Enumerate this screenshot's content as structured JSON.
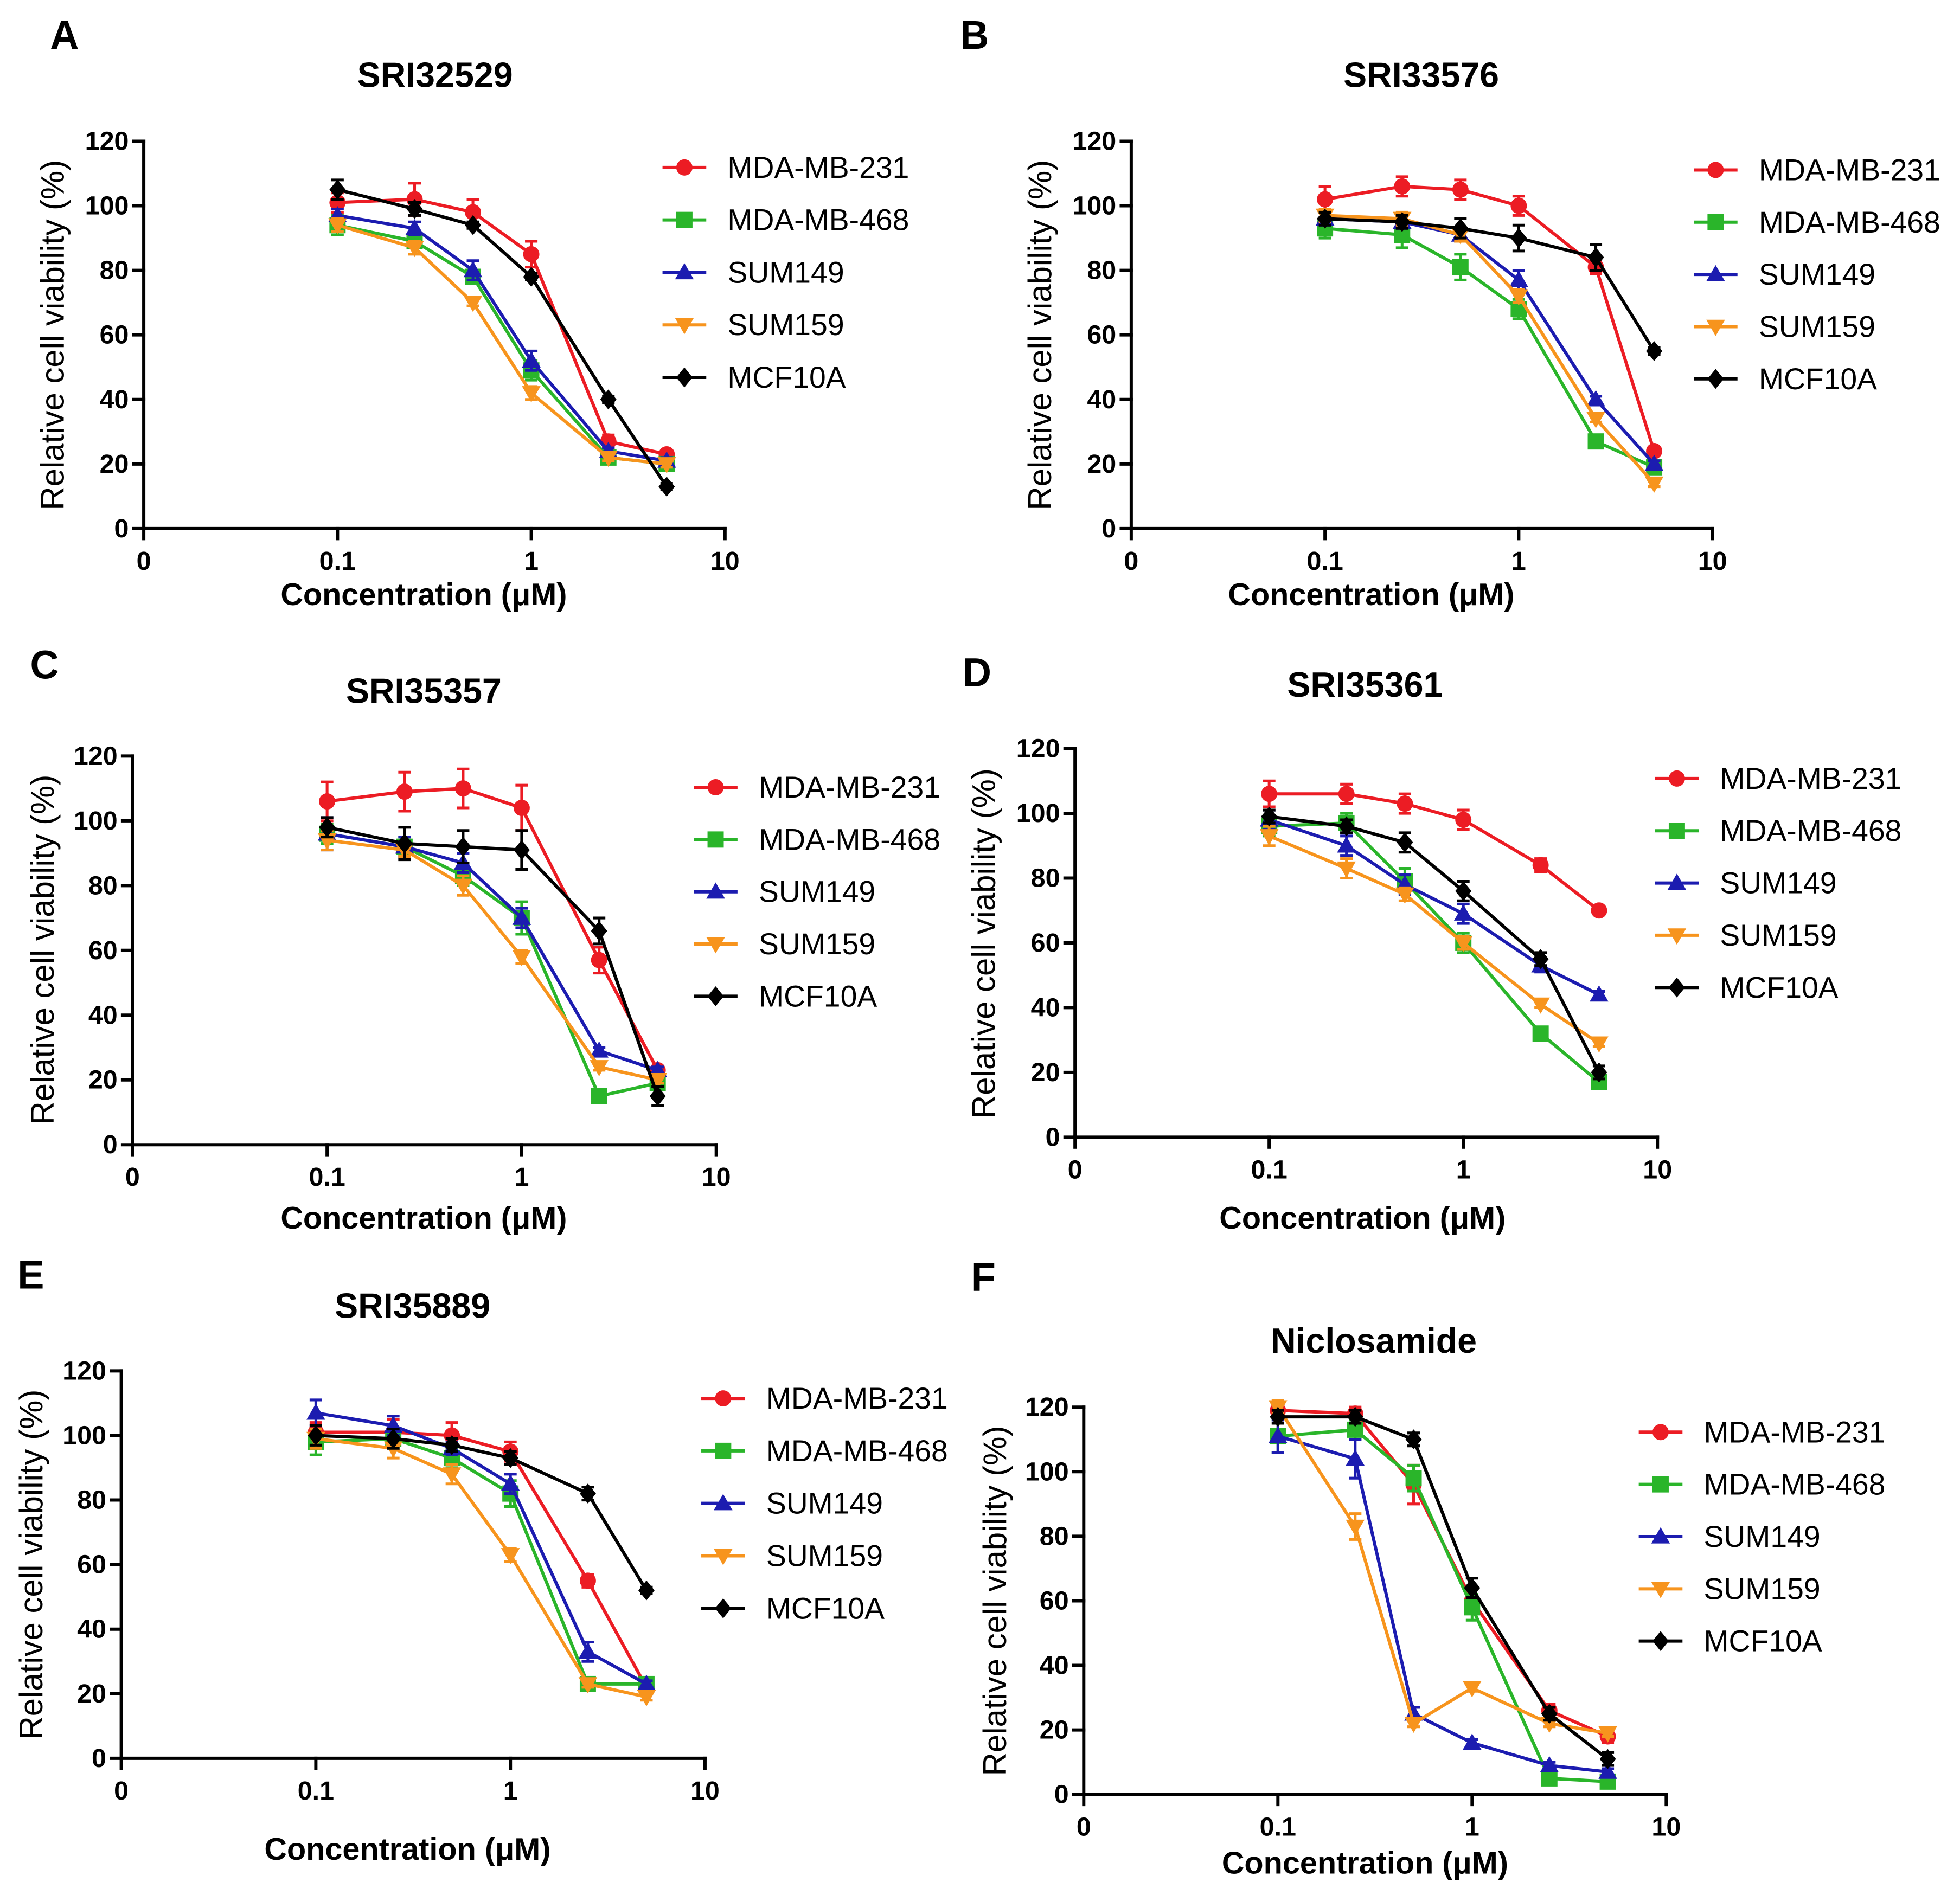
{
  "chart_data": [
    {
      "panel": "A",
      "type": "line",
      "title": "SRI32529",
      "xlabel": "Concentration (μM)",
      "ylabel": "Relative cell viability (%)",
      "xscale": "log",
      "x": [
        0.1,
        0.25,
        0.5,
        1,
        2.5,
        5
      ],
      "xticks": [
        "0",
        "0.1",
        "1",
        "10"
      ],
      "ylim": [
        0,
        120
      ],
      "yticks": [
        "0",
        "20",
        "40",
        "60",
        "80",
        "100",
        "120"
      ],
      "grid": false,
      "legend": "right",
      "series": [
        {
          "name": "MDA-MB-231",
          "color": "#ec1c24",
          "marker": "circle",
          "values": [
            101,
            102,
            98,
            85,
            27,
            23
          ],
          "errors": [
            3,
            5,
            4,
            4,
            2,
            1
          ]
        },
        {
          "name": "MDA-MB-468",
          "color": "#2ab52a",
          "marker": "square",
          "values": [
            94,
            89,
            78,
            49,
            22,
            20
          ],
          "errors": [
            3,
            2,
            2,
            3,
            1,
            1
          ]
        },
        {
          "name": "SUM149",
          "color": "#1c1cb0",
          "marker": "triangle-up",
          "values": [
            97,
            93,
            80,
            52,
            24,
            21
          ],
          "errors": [
            2,
            2,
            3,
            3,
            1,
            1
          ]
        },
        {
          "name": "SUM159",
          "color": "#f7941d",
          "marker": "triangle-down",
          "values": [
            94,
            87,
            70,
            42,
            22,
            20
          ],
          "errors": [
            2,
            2,
            1,
            2,
            1,
            1
          ]
        },
        {
          "name": "MCF10A",
          "color": "#000000",
          "marker": "diamond",
          "values": [
            105,
            99,
            94,
            78,
            40,
            13
          ],
          "errors": [
            3,
            2,
            1,
            1,
            1,
            1
          ]
        }
      ]
    },
    {
      "panel": "B",
      "type": "line",
      "title": "SRI33576",
      "xlabel": "Concentration (μM)",
      "ylabel": "Relative cell viability (%)",
      "xscale": "log",
      "x": [
        0.1,
        0.25,
        0.5,
        1,
        2.5,
        5
      ],
      "xticks": [
        "0",
        "0.1",
        "1",
        "10"
      ],
      "ylim": [
        0,
        120
      ],
      "yticks": [
        "0",
        "20",
        "40",
        "60",
        "80",
        "100",
        "120"
      ],
      "grid": false,
      "legend": "right",
      "series": [
        {
          "name": "MDA-MB-231",
          "color": "#ec1c24",
          "marker": "circle",
          "values": [
            102,
            106,
            105,
            100,
            81,
            24
          ],
          "errors": [
            4,
            3,
            3,
            3,
            2,
            1
          ]
        },
        {
          "name": "MDA-MB-468",
          "color": "#2ab52a",
          "marker": "square",
          "values": [
            93,
            91,
            81,
            68,
            27,
            19
          ],
          "errors": [
            3,
            4,
            4,
            3,
            1,
            1
          ]
        },
        {
          "name": "SUM149",
          "color": "#1c1cb0",
          "marker": "triangle-up",
          "values": [
            96,
            95,
            91,
            77,
            40,
            20
          ],
          "errors": [
            2,
            2,
            2,
            3,
            1,
            1
          ]
        },
        {
          "name": "SUM159",
          "color": "#f7941d",
          "marker": "triangle-down",
          "values": [
            97,
            96,
            91,
            72,
            34,
            14
          ],
          "errors": [
            2,
            2,
            2,
            2,
            1,
            1
          ]
        },
        {
          "name": "MCF10A",
          "color": "#000000",
          "marker": "diamond",
          "values": [
            96,
            95,
            93,
            90,
            84,
            55
          ],
          "errors": [
            2,
            2,
            3,
            4,
            4,
            1
          ]
        }
      ]
    },
    {
      "panel": "C",
      "type": "line",
      "title": "SRI35357",
      "xlabel": "Concentration (μM)",
      "ylabel": "Relative cell viability (%)",
      "xscale": "log",
      "x": [
        0.1,
        0.25,
        0.5,
        1,
        2.5,
        5
      ],
      "xticks": [
        "0",
        "0.1",
        "1",
        "10"
      ],
      "ylim": [
        0,
        120
      ],
      "yticks": [
        "0",
        "20",
        "40",
        "60",
        "80",
        "100",
        "120"
      ],
      "grid": false,
      "legend": "right",
      "series": [
        {
          "name": "MDA-MB-231",
          "color": "#ec1c24",
          "marker": "circle",
          "values": [
            106,
            109,
            110,
            104,
            57,
            23
          ],
          "errors": [
            6,
            6,
            6,
            7,
            4,
            1
          ]
        },
        {
          "name": "MDA-MB-468",
          "color": "#2ab52a",
          "marker": "square",
          "values": [
            96,
            92,
            83,
            70,
            15,
            19
          ],
          "errors": [
            3,
            3,
            3,
            5,
            1,
            1
          ]
        },
        {
          "name": "SUM149",
          "color": "#1c1cb0",
          "marker": "triangle-up",
          "values": [
            96,
            92,
            87,
            70,
            29,
            23
          ],
          "errors": [
            5,
            3,
            3,
            3,
            1,
            1
          ]
        },
        {
          "name": "SUM159",
          "color": "#f7941d",
          "marker": "triangle-down",
          "values": [
            94,
            91,
            80,
            58,
            24,
            20
          ],
          "errors": [
            3,
            2,
            3,
            2,
            1,
            1
          ]
        },
        {
          "name": "MCF10A",
          "color": "#000000",
          "marker": "diamond",
          "values": [
            98,
            93,
            92,
            91,
            66,
            15
          ],
          "errors": [
            3,
            5,
            5,
            6,
            4,
            3
          ]
        }
      ]
    },
    {
      "panel": "D",
      "type": "line",
      "title": "SRI35361",
      "xlabel": "Concentration (μM)",
      "ylabel": "Relative cell viability (%)",
      "xscale": "log",
      "x": [
        0.1,
        0.25,
        0.5,
        1,
        2.5,
        5
      ],
      "xticks": [
        "0",
        "0.1",
        "1",
        "10"
      ],
      "ylim": [
        0,
        120
      ],
      "yticks": [
        "0",
        "20",
        "40",
        "60",
        "80",
        "100",
        "120"
      ],
      "grid": false,
      "legend": "right",
      "series": [
        {
          "name": "MDA-MB-231",
          "color": "#ec1c24",
          "marker": "circle",
          "values": [
            106,
            106,
            103,
            98,
            84,
            70
          ],
          "errors": [
            4,
            3,
            3,
            3,
            2,
            1
          ]
        },
        {
          "name": "MDA-MB-468",
          "color": "#2ab52a",
          "marker": "square",
          "values": [
            96,
            97,
            79,
            60,
            32,
            17
          ],
          "errors": [
            3,
            3,
            4,
            3,
            1,
            2
          ]
        },
        {
          "name": "SUM149",
          "color": "#1c1cb0",
          "marker": "triangle-up",
          "values": [
            98,
            90,
            78,
            69,
            53,
            44
          ],
          "errors": [
            3,
            3,
            3,
            3,
            2,
            1
          ]
        },
        {
          "name": "SUM159",
          "color": "#f7941d",
          "marker": "triangle-down",
          "values": [
            93,
            83,
            75,
            60,
            41,
            29
          ],
          "errors": [
            3,
            3,
            2,
            2,
            1,
            1
          ]
        },
        {
          "name": "MCF10A",
          "color": "#000000",
          "marker": "diamond",
          "values": [
            99,
            96,
            91,
            76,
            55,
            20
          ],
          "errors": [
            2,
            2,
            3,
            3,
            2,
            2
          ]
        }
      ]
    },
    {
      "panel": "E",
      "type": "line",
      "title": "SRI35889",
      "xlabel": "Concentration (μM)",
      "ylabel": "Relative cell viability (%)",
      "xscale": "log",
      "x": [
        0.1,
        0.25,
        0.5,
        1,
        2.5,
        5
      ],
      "xticks": [
        "0",
        "0.1",
        "1",
        "10"
      ],
      "ylim": [
        0,
        120
      ],
      "yticks": [
        "0",
        "20",
        "40",
        "60",
        "80",
        "100",
        "120"
      ],
      "grid": false,
      "legend": "right",
      "series": [
        {
          "name": "MDA-MB-231",
          "color": "#ec1c24",
          "marker": "circle",
          "values": [
            101,
            101,
            100,
            95,
            55,
            22
          ],
          "errors": [
            3,
            4,
            4,
            3,
            2,
            1
          ]
        },
        {
          "name": "MDA-MB-468",
          "color": "#2ab52a",
          "marker": "square",
          "values": [
            98,
            99,
            93,
            82,
            23,
            23
          ],
          "errors": [
            4,
            3,
            3,
            4,
            1,
            1
          ]
        },
        {
          "name": "SUM149",
          "color": "#1c1cb0",
          "marker": "triangle-up",
          "values": [
            107,
            103,
            96,
            85,
            33,
            23
          ],
          "errors": [
            4,
            3,
            2,
            3,
            3,
            1
          ]
        },
        {
          "name": "SUM159",
          "color": "#f7941d",
          "marker": "triangle-down",
          "values": [
            99,
            96,
            88,
            63,
            23,
            19
          ],
          "errors": [
            3,
            3,
            3,
            2,
            1,
            1
          ]
        },
        {
          "name": "MCF10A",
          "color": "#000000",
          "marker": "diamond",
          "values": [
            100,
            99,
            97,
            93,
            82,
            52
          ],
          "errors": [
            3,
            3,
            2,
            2,
            2,
            1
          ]
        }
      ]
    },
    {
      "panel": "F",
      "type": "line",
      "title": "Niclosamide",
      "xlabel": "Concentration (μM)",
      "ylabel": "Relative cell viability (%)",
      "xscale": "log",
      "x": [
        0.1,
        0.25,
        0.5,
        1,
        2.5,
        5
      ],
      "xticks": [
        "0",
        "0.1",
        "1",
        "10"
      ],
      "ylim": [
        0,
        120
      ],
      "yticks": [
        "0",
        "20",
        "40",
        "60",
        "80",
        "100",
        "120"
      ],
      "grid": false,
      "legend": "right",
      "series": [
        {
          "name": "MDA-MB-231",
          "color": "#ec1c24",
          "marker": "circle",
          "values": [
            119,
            118,
            96,
            60,
            26,
            18
          ],
          "errors": [
            2,
            2,
            6,
            4,
            2,
            2
          ]
        },
        {
          "name": "MDA-MB-468",
          "color": "#2ab52a",
          "marker": "square",
          "values": [
            111,
            113,
            98,
            58,
            5,
            4
          ],
          "errors": [
            5,
            3,
            4,
            4,
            1,
            1
          ]
        },
        {
          "name": "SUM149",
          "color": "#1c1cb0",
          "marker": "triangle-up",
          "values": [
            111,
            104,
            25,
            16,
            9,
            7
          ],
          "errors": [
            5,
            6,
            2,
            1,
            1,
            1
          ]
        },
        {
          "name": "SUM159",
          "color": "#f7941d",
          "marker": "triangle-down",
          "values": [
            120,
            83,
            22,
            33,
            22,
            19
          ],
          "errors": [
            2,
            4,
            1,
            1,
            1,
            1
          ]
        },
        {
          "name": "MCF10A",
          "color": "#000000",
          "marker": "diamond",
          "values": [
            117,
            117,
            110,
            64,
            25,
            11
          ],
          "errors": [
            2,
            2,
            2,
            3,
            2,
            2
          ]
        }
      ]
    }
  ]
}
